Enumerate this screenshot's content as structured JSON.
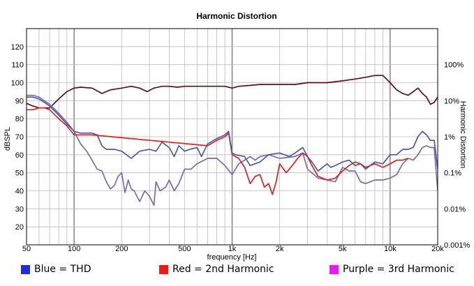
{
  "chart_data": {
    "type": "line",
    "title": "Harmonic Distortion",
    "xlabel": "frequency [Hz]",
    "ylabel": "dBSPL",
    "y2label": "Harmonic Distortion",
    "x_scale": "log",
    "xlim": [
      50,
      20000
    ],
    "ylim": [
      10,
      130
    ],
    "x_ticks": [
      50,
      100,
      200,
      500,
      1000,
      2000,
      5000,
      10000,
      20000
    ],
    "x_tick_labels": [
      "50",
      "100",
      "200",
      "500",
      "1k",
      "2k",
      "5k",
      "10k",
      "20k"
    ],
    "y_ticks": [
      20,
      30,
      40,
      50,
      60,
      70,
      80,
      90,
      100,
      110,
      120
    ],
    "y2_ticks": [
      "100%",
      "10%",
      "1%",
      "0.1%",
      "0.01%",
      "0.001%"
    ],
    "y2_tick_values_dbspl": [
      110,
      90,
      70,
      50,
      30,
      10
    ],
    "grid": true,
    "series": [
      {
        "name": "",
        "role": "frequency response",
        "color": "#5a0f18",
        "points": [
          [
            50,
            88.5
          ],
          [
            55,
            87
          ],
          [
            60,
            86
          ],
          [
            70,
            86
          ],
          [
            80,
            91
          ],
          [
            90,
            95
          ],
          [
            100,
            97
          ],
          [
            110,
            97.5
          ],
          [
            130,
            97
          ],
          [
            150,
            94
          ],
          [
            170,
            96
          ],
          [
            200,
            97
          ],
          [
            230,
            98
          ],
          [
            260,
            97
          ],
          [
            290,
            95
          ],
          [
            320,
            97
          ],
          [
            360,
            98
          ],
          [
            400,
            98
          ],
          [
            450,
            97.5
          ],
          [
            500,
            98
          ],
          [
            600,
            98
          ],
          [
            700,
            98
          ],
          [
            800,
            98
          ],
          [
            900,
            98
          ],
          [
            1000,
            97
          ],
          [
            1100,
            98
          ],
          [
            1300,
            98.5
          ],
          [
            1500,
            99
          ],
          [
            1700,
            99
          ],
          [
            2000,
            99
          ],
          [
            2500,
            99
          ],
          [
            3000,
            100
          ],
          [
            3500,
            100
          ],
          [
            4000,
            100
          ],
          [
            5000,
            101
          ],
          [
            6000,
            102
          ],
          [
            7000,
            103
          ],
          [
            8000,
            104
          ],
          [
            9000,
            104
          ],
          [
            10000,
            100
          ],
          [
            11000,
            96
          ],
          [
            12000,
            94
          ],
          [
            13000,
            93
          ],
          [
            14000,
            95
          ],
          [
            15000,
            97
          ],
          [
            16000,
            94
          ],
          [
            17000,
            92
          ],
          [
            18000,
            88
          ],
          [
            19000,
            89
          ],
          [
            20000,
            92
          ]
        ]
      },
      {
        "name": "Blue = THD",
        "color": "#4a5aa0",
        "points": [
          [
            50,
            92
          ],
          [
            55,
            92
          ],
          [
            60,
            91
          ],
          [
            65,
            89
          ],
          [
            70,
            87
          ],
          [
            80,
            82
          ],
          [
            90,
            77
          ],
          [
            100,
            73
          ],
          [
            110,
            72
          ],
          [
            130,
            72
          ],
          [
            140,
            71
          ],
          [
            150,
            65
          ],
          [
            160,
            63
          ],
          [
            180,
            63
          ],
          [
            200,
            62
          ],
          [
            230,
            58
          ],
          [
            260,
            62
          ],
          [
            300,
            63
          ],
          [
            330,
            62
          ],
          [
            360,
            67
          ],
          [
            400,
            64
          ],
          [
            430,
            59
          ],
          [
            460,
            65
          ],
          [
            500,
            62
          ],
          [
            540,
            63
          ],
          [
            600,
            64
          ],
          [
            640,
            59
          ],
          [
            700,
            66
          ],
          [
            800,
            69
          ],
          [
            900,
            71
          ],
          [
            950,
            73
          ],
          [
            1000,
            61
          ],
          [
            1050,
            60
          ],
          [
            1200,
            59
          ],
          [
            1300,
            54
          ],
          [
            1500,
            56
          ],
          [
            1700,
            60
          ],
          [
            2000,
            61
          ],
          [
            2300,
            59
          ],
          [
            2500,
            61
          ],
          [
            2800,
            64
          ],
          [
            3000,
            59
          ],
          [
            3200,
            56
          ],
          [
            3500,
            51
          ],
          [
            4000,
            55
          ],
          [
            4200,
            53
          ],
          [
            4500,
            54
          ],
          [
            5000,
            56
          ],
          [
            5500,
            57
          ],
          [
            6000,
            54
          ],
          [
            6500,
            55
          ],
          [
            7000,
            52
          ],
          [
            8000,
            56
          ],
          [
            9000,
            55
          ],
          [
            10000,
            60
          ],
          [
            11000,
            60
          ],
          [
            12000,
            63
          ],
          [
            13000,
            63
          ],
          [
            14000,
            64
          ],
          [
            15000,
            70
          ],
          [
            16000,
            73
          ],
          [
            17000,
            71
          ],
          [
            18000,
            68
          ],
          [
            19000,
            68
          ],
          [
            20000,
            52
          ]
        ]
      },
      {
        "name": "Red = 2nd Harmonic",
        "color": "#e02020",
        "points": [
          [
            50,
            85
          ],
          [
            55,
            85
          ],
          [
            60,
            86
          ],
          [
            65,
            86
          ],
          [
            70,
            85
          ],
          [
            80,
            80
          ],
          [
            90,
            76
          ],
          [
            100,
            71
          ],
          [
            110,
            71
          ],
          [
            130,
            71
          ],
          [
            700,
            65
          ],
          [
            800,
            68
          ],
          [
            900,
            70
          ],
          [
            950,
            72
          ],
          [
            1000,
            60
          ],
          [
            1050,
            59
          ],
          [
            1100,
            58
          ],
          [
            1200,
            53
          ],
          [
            1300,
            44
          ],
          [
            1400,
            48
          ],
          [
            1500,
            49
          ],
          [
            1600,
            42
          ],
          [
            1700,
            44
          ],
          [
            1800,
            38
          ],
          [
            1900,
            45
          ],
          [
            2000,
            55
          ],
          [
            2200,
            50
          ],
          [
            2400,
            54
          ],
          [
            2600,
            58
          ],
          [
            2800,
            61
          ],
          [
            3000,
            59
          ],
          [
            3200,
            54
          ],
          [
            3500,
            48
          ],
          [
            4000,
            46
          ],
          [
            4500,
            47
          ],
          [
            5000,
            51
          ],
          [
            5500,
            54
          ],
          [
            6000,
            56
          ],
          [
            6500,
            55
          ],
          [
            7000,
            53
          ],
          [
            8000,
            55
          ],
          [
            9000,
            53
          ],
          [
            10000,
            55
          ],
          [
            11000,
            57
          ],
          [
            12000,
            57
          ],
          [
            13000,
            58
          ]
        ]
      },
      {
        "name": "Purple = 3rd Harmonic",
        "color": "#7a6ab0",
        "points": [
          [
            50,
            93
          ],
          [
            55,
            93
          ],
          [
            60,
            92
          ],
          [
            70,
            88
          ],
          [
            80,
            83
          ],
          [
            90,
            78
          ],
          [
            100,
            73
          ],
          [
            110,
            66
          ],
          [
            120,
            62
          ],
          [
            130,
            57
          ],
          [
            140,
            52
          ],
          [
            150,
            51
          ],
          [
            160,
            45
          ],
          [
            170,
            41
          ],
          [
            180,
            43
          ],
          [
            190,
            48
          ],
          [
            200,
            50
          ],
          [
            210,
            39
          ],
          [
            220,
            46
          ],
          [
            230,
            41
          ],
          [
            240,
            40
          ],
          [
            260,
            34
          ],
          [
            280,
            40
          ],
          [
            300,
            37
          ],
          [
            320,
            32
          ],
          [
            330,
            45
          ],
          [
            350,
            40
          ],
          [
            380,
            42
          ],
          [
            400,
            46
          ],
          [
            430,
            40
          ],
          [
            460,
            44
          ],
          [
            500,
            52
          ],
          [
            550,
            52
          ],
          [
            600,
            55
          ],
          [
            700,
            58
          ],
          [
            800,
            58
          ],
          [
            900,
            54
          ],
          [
            1000,
            49
          ],
          [
            1100,
            55
          ],
          [
            1200,
            57
          ],
          [
            1300,
            59
          ],
          [
            1400,
            57
          ],
          [
            1500,
            59
          ],
          [
            1700,
            60
          ],
          [
            2000,
            58
          ],
          [
            2500,
            59
          ],
          [
            2800,
            61
          ],
          [
            3000,
            52
          ],
          [
            3500,
            47
          ],
          [
            4000,
            46
          ],
          [
            4500,
            45
          ],
          [
            5000,
            53
          ],
          [
            5500,
            51
          ],
          [
            6000,
            51
          ],
          [
            6500,
            45
          ],
          [
            7000,
            44
          ],
          [
            8000,
            46
          ],
          [
            9000,
            46
          ],
          [
            10000,
            47
          ],
          [
            11000,
            49
          ],
          [
            12000,
            55
          ],
          [
            13000,
            58
          ],
          [
            14000,
            57
          ],
          [
            15000,
            60
          ],
          [
            16000,
            64
          ],
          [
            17000,
            65
          ],
          [
            18000,
            64
          ],
          [
            19000,
            64
          ],
          [
            20000,
            40
          ]
        ]
      }
    ],
    "legend": [
      {
        "label": "Blue = THD",
        "color": "#1f2fd8"
      },
      {
        "label": "Red = 2nd Harmonic",
        "color": "#e81c1c"
      },
      {
        "label": "Purple = 3rd Harmonic",
        "color": "#e81ce8"
      }
    ]
  }
}
